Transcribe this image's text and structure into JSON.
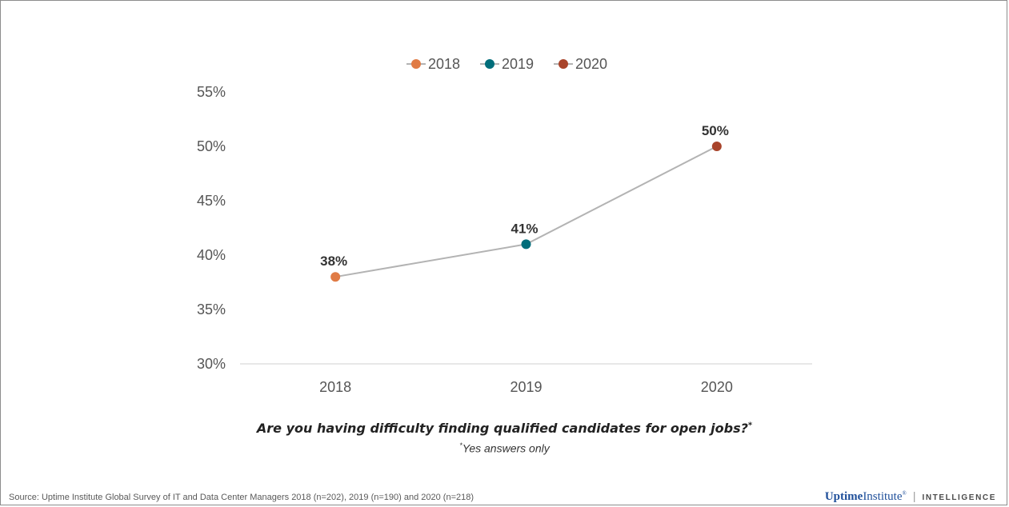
{
  "chart_data": {
    "type": "line",
    "categories": [
      "2018",
      "2019",
      "2020"
    ],
    "values": [
      38,
      41,
      50
    ],
    "data_labels": [
      "38%",
      "41%",
      "50%"
    ],
    "point_colors": [
      "#e07b45",
      "#006d7a",
      "#a8432a"
    ],
    "line_color": "#b3b3b3",
    "legend": [
      "2018",
      "2019",
      "2020"
    ],
    "legend_position": "top-center",
    "ylim": [
      30,
      55
    ],
    "yticks": [
      30,
      35,
      40,
      45,
      50,
      55
    ],
    "ytick_labels": [
      "30%",
      "35%",
      "40%",
      "45%",
      "50%",
      "55%"
    ],
    "grid": false
  },
  "question": "Are you having difficulty finding qualified candidates for open jobs?",
  "question_mark": "*",
  "note_star": "*",
  "note": "Yes answers only",
  "source": "Source: Uptime Institute Global Survey of IT and Data Center Managers 2018 (n=202), 2019 (n=190)  and 2020 (n=218)",
  "brand": {
    "name_part1": "Uptime",
    "name_part2": "Institute",
    "reg": "®",
    "separator": "|",
    "sub": "INTELLIGENCE"
  }
}
